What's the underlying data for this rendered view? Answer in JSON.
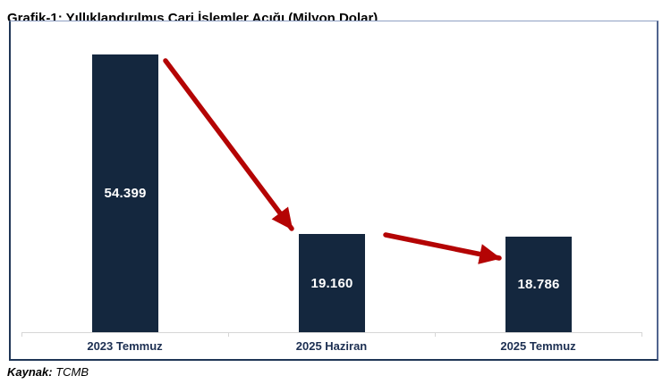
{
  "page": {
    "title": "Grafik-1: Yıllıklandırılmış Cari İşlemler Açığı (Milyon Dolar)"
  },
  "source": {
    "label": "Kaynak:",
    "value": "TCMB"
  },
  "chart_data": {
    "type": "bar",
    "title": "Grafik-1: Yıllıklandırılmış Cari İşlemler Açığı (Milyon Dolar)",
    "unit": "Milyon Dolar",
    "categories": [
      "2023 Temmuz",
      "2025 Haziran",
      "2025 Temmuz"
    ],
    "values": [
      54399,
      19160,
      18786
    ],
    "value_labels": [
      "54.399",
      "19.160",
      "18.786"
    ],
    "ylim": [
      0,
      56500
    ],
    "grid": false,
    "legend": "none",
    "y_axis_visible": false,
    "annotations": [
      "red arrow pointing down-right from top of 2023 Temmuz bar to top of 2025 Haziran bar",
      "red arrow pointing slightly down-right from 2025 Haziran bar toward top of 2025 Temmuz bar"
    ],
    "colors": {
      "bar": "#14273E",
      "bar_label": "#FFFFFF",
      "category_label": "#1C2F52",
      "arrow": "#B40404",
      "axis_line": "#D6D6D6"
    }
  }
}
